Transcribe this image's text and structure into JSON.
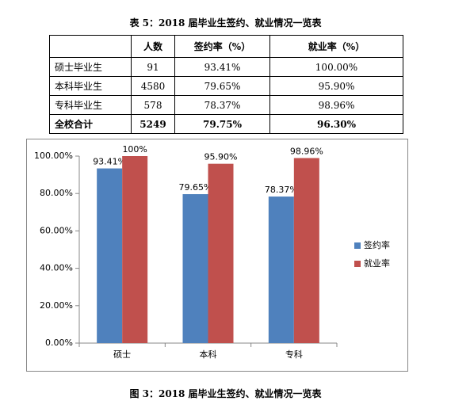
{
  "table": {
    "title": "表 5：2018 届毕业生签约、就业情况一览表",
    "header": [
      "人数",
      "签约率（%）",
      "就业率（%）"
    ],
    "rows": [
      [
        "硕士毕业生",
        "91",
        "93.41%",
        "100.00%"
      ],
      [
        "本科毕业生",
        "4580",
        "79.65%",
        "95.90%"
      ],
      [
        "专科毕业生",
        "578",
        "78.37%",
        "98.96%"
      ],
      [
        "全校合计",
        "5249",
        "79.75%",
        "96.30%"
      ]
    ]
  },
  "chart_data": {
    "type": "bar",
    "categories": [
      "硕士",
      "本科",
      "专科"
    ],
    "series": [
      {
        "name": "签约率",
        "color": "#4f81bd",
        "values": [
          93.41,
          79.65,
          78.37
        ],
        "value_labels": [
          "93.41%",
          "79.65%",
          "78.37%"
        ]
      },
      {
        "name": "就业率",
        "color": "#c0504d",
        "values": [
          100,
          95.9,
          98.96
        ],
        "value_labels": [
          "100%",
          "95.90%",
          "98.96%"
        ]
      }
    ],
    "ylim": [
      0,
      100
    ],
    "yticks": [
      {
        "value": 0,
        "label": "0.00%"
      },
      {
        "value": 20,
        "label": "20.00%"
      },
      {
        "value": 40,
        "label": "40.00%"
      },
      {
        "value": 60,
        "label": "60.00%"
      },
      {
        "value": 80,
        "label": "80.00%"
      },
      {
        "value": 100,
        "label": "100.00%"
      }
    ],
    "legend": "right"
  },
  "caption": "图 3：2018 届毕业生签约、就业情况一览表"
}
